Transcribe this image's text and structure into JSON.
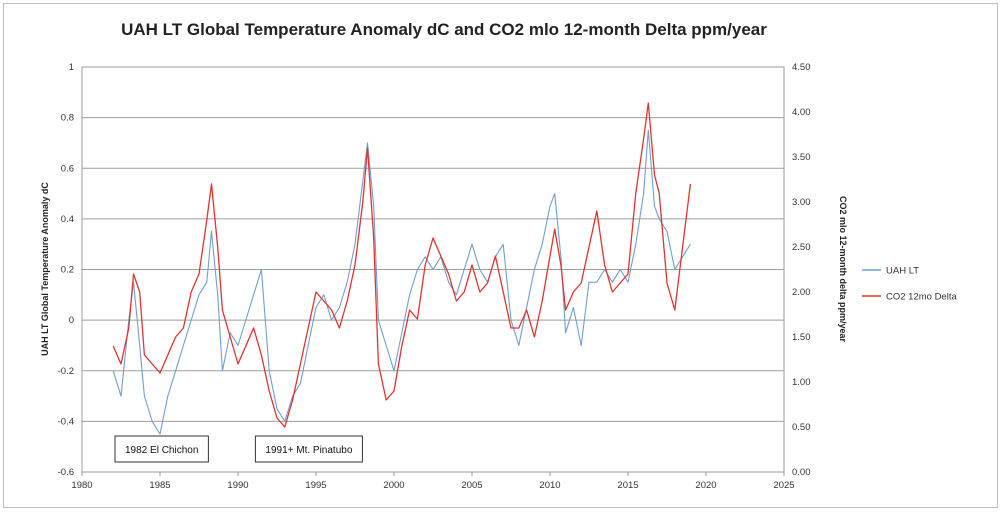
{
  "chart_data": {
    "type": "line",
    "title": "UAH LT Global Temperature Anomaly dC and CO2 mlo 12-month Delta ppm/year",
    "xlabel": "",
    "ylabel": "UAH LT Global Temperature Anomaly dC",
    "ylabel_right": "CO2 mlo 12-month delta ppm/year",
    "xlim": [
      1980,
      2025
    ],
    "ylim": [
      -0.6,
      1.0
    ],
    "ylim_right": [
      0.0,
      4.5
    ],
    "x_ticks": [
      "1980",
      "1985",
      "1990",
      "1995",
      "2000",
      "2005",
      "2010",
      "2015",
      "2020",
      "2025"
    ],
    "y_ticks": [
      "-0.6",
      "-0.4",
      "-0.2",
      "0",
      "0.2",
      "0.4",
      "0.6",
      "0.8",
      "1"
    ],
    "y_ticks_right": [
      "0.00",
      "0.50",
      "1.00",
      "1.50",
      "2.00",
      "2.50",
      "3.00",
      "3.50",
      "4.00",
      "4.50"
    ],
    "grid": true,
    "legend_position": "right",
    "series": [
      {
        "name": "UAH LT",
        "axis": "left",
        "color": "#6f9ed1",
        "x": [
          1982.0,
          1982.5,
          1983.0,
          1983.3,
          1983.7,
          1984.0,
          1984.5,
          1985.0,
          1985.5,
          1986.0,
          1986.5,
          1987.0,
          1987.5,
          1988.0,
          1988.3,
          1988.7,
          1989.0,
          1989.5,
          1990.0,
          1990.5,
          1991.0,
          1991.5,
          1992.0,
          1992.5,
          1993.0,
          1993.5,
          1994.0,
          1994.5,
          1995.0,
          1995.5,
          1996.0,
          1996.5,
          1997.0,
          1997.5,
          1998.0,
          1998.3,
          1998.7,
          1999.0,
          1999.5,
          2000.0,
          2000.5,
          2001.0,
          2001.5,
          2002.0,
          2002.5,
          2003.0,
          2003.5,
          2004.0,
          2004.5,
          2005.0,
          2005.5,
          2006.0,
          2006.5,
          2007.0,
          2007.5,
          2008.0,
          2008.5,
          2009.0,
          2009.5,
          2010.0,
          2010.3,
          2010.7,
          2011.0,
          2011.5,
          2012.0,
          2012.5,
          2013.0,
          2013.5,
          2014.0,
          2014.5,
          2015.0,
          2015.5,
          2016.0,
          2016.3,
          2016.7,
          2017.0,
          2017.5,
          2018.0,
          2018.5,
          2019.0
        ],
        "y": [
          -0.2,
          -0.3,
          0.0,
          0.15,
          -0.1,
          -0.3,
          -0.4,
          -0.45,
          -0.3,
          -0.2,
          -0.1,
          0.0,
          0.1,
          0.15,
          0.35,
          0.1,
          -0.2,
          -0.05,
          -0.1,
          0.0,
          0.1,
          0.2,
          -0.2,
          -0.35,
          -0.4,
          -0.3,
          -0.25,
          -0.1,
          0.05,
          0.1,
          0.0,
          0.05,
          0.15,
          0.3,
          0.55,
          0.7,
          0.45,
          0.0,
          -0.1,
          -0.2,
          -0.05,
          0.1,
          0.2,
          0.25,
          0.2,
          0.25,
          0.15,
          0.1,
          0.2,
          0.3,
          0.2,
          0.15,
          0.25,
          0.3,
          0.0,
          -0.1,
          0.05,
          0.2,
          0.3,
          0.45,
          0.5,
          0.25,
          -0.05,
          0.05,
          -0.1,
          0.15,
          0.15,
          0.2,
          0.15,
          0.2,
          0.15,
          0.3,
          0.5,
          0.75,
          0.45,
          0.4,
          0.35,
          0.2,
          0.25,
          0.3
        ]
      },
      {
        "name": "CO2 12mo Delta",
        "axis": "right",
        "color": "#e2332f",
        "x": [
          1982.0,
          1982.5,
          1983.0,
          1983.3,
          1983.7,
          1984.0,
          1984.5,
          1985.0,
          1985.5,
          1986.0,
          1986.5,
          1987.0,
          1987.5,
          1988.0,
          1988.3,
          1988.7,
          1989.0,
          1989.5,
          1990.0,
          1990.5,
          1991.0,
          1991.5,
          1992.0,
          1992.5,
          1993.0,
          1993.5,
          1994.0,
          1994.5,
          1995.0,
          1995.5,
          1996.0,
          1996.5,
          1997.0,
          1997.5,
          1998.0,
          1998.3,
          1998.7,
          1999.0,
          1999.5,
          2000.0,
          2000.5,
          2001.0,
          2001.5,
          2002.0,
          2002.5,
          2003.0,
          2003.5,
          2004.0,
          2004.5,
          2005.0,
          2005.5,
          2006.0,
          2006.5,
          2007.0,
          2007.5,
          2008.0,
          2008.5,
          2009.0,
          2009.5,
          2010.0,
          2010.3,
          2010.7,
          2011.0,
          2011.5,
          2012.0,
          2012.5,
          2013.0,
          2013.5,
          2014.0,
          2014.5,
          2015.0,
          2015.5,
          2016.0,
          2016.3,
          2016.7,
          2017.0,
          2017.5,
          2018.0,
          2018.5,
          2019.0
        ],
        "y": [
          1.4,
          1.2,
          1.6,
          2.2,
          2.0,
          1.3,
          1.2,
          1.1,
          1.3,
          1.5,
          1.6,
          2.0,
          2.2,
          2.8,
          3.2,
          2.5,
          1.8,
          1.5,
          1.2,
          1.4,
          1.6,
          1.3,
          0.9,
          0.6,
          0.5,
          0.8,
          1.2,
          1.6,
          2.0,
          1.9,
          1.8,
          1.6,
          1.9,
          2.3,
          3.0,
          3.6,
          2.6,
          1.2,
          0.8,
          0.9,
          1.4,
          1.8,
          1.7,
          2.3,
          2.6,
          2.4,
          2.2,
          1.9,
          2.0,
          2.3,
          2.0,
          2.1,
          2.4,
          2.0,
          1.6,
          1.6,
          1.8,
          1.5,
          1.9,
          2.4,
          2.7,
          2.3,
          1.8,
          2.0,
          2.1,
          2.5,
          2.9,
          2.3,
          2.0,
          2.1,
          2.2,
          3.1,
          3.7,
          4.1,
          3.3,
          3.1,
          2.1,
          1.8,
          2.5,
          3.2
        ]
      }
    ],
    "annotations": [
      {
        "text": "1982 El Chichon",
        "x": 1982.5
      },
      {
        "text": "1991+ Mt. Pinatubo",
        "x": 1991.5
      }
    ]
  }
}
